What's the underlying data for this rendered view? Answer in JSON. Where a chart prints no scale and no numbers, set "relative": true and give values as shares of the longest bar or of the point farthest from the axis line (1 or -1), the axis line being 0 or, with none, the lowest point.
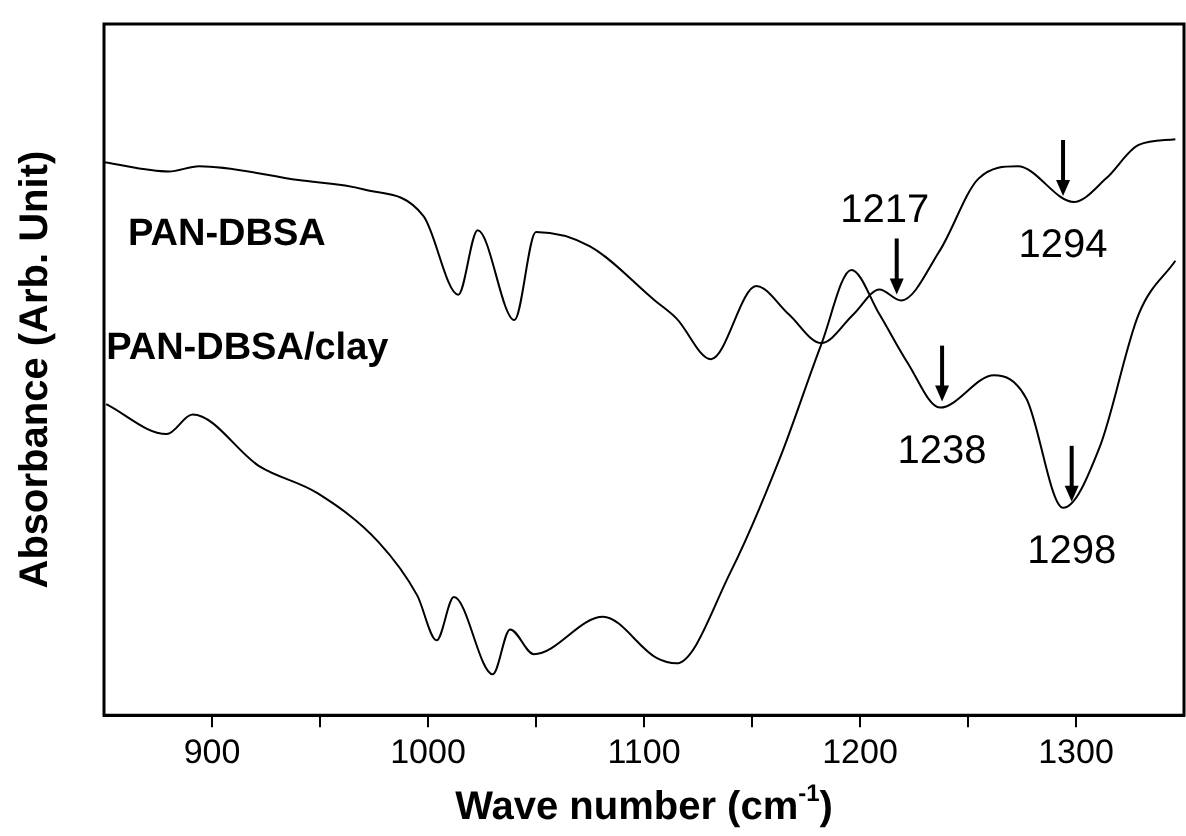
{
  "chart_data": {
    "type": "line",
    "xlabel": "Wave number (cm$^{-1}$)",
    "ylabel": "Absorbance (Arb. Unit)",
    "relative": true,
    "xlim": [
      850,
      1350
    ],
    "xticks": [
      900,
      {
        "value": 950,
        "label": null
      },
      1000,
      {
        "value": 1050,
        "label": null
      },
      1100,
      {
        "value": 1150,
        "label": null
      },
      1200,
      {
        "value": 1250,
        "label": null
      },
      1300
    ],
    "grid": false,
    "legend": false,
    "marker": "none",
    "line_style": "solid",
    "series": [
      {
        "name": "PAN-DBSA",
        "color": "#000000",
        "x": [
          850,
          880,
          894,
          940,
          970,
          998,
          1014,
          1023,
          1040,
          1050,
          1075,
          1105,
          1115,
          1131,
          1152,
          1167,
          1182,
          1197,
          1209,
          1219,
          1237,
          1255,
          1273,
          1299,
          1314,
          1329,
          1346
        ],
        "values": [
          0.96,
          0.944,
          0.953,
          0.929,
          0.913,
          0.866,
          0.73,
          0.842,
          0.686,
          0.839,
          0.814,
          0.72,
          0.689,
          0.618,
          0.745,
          0.696,
          0.646,
          0.696,
          0.739,
          0.72,
          0.807,
          0.932,
          0.953,
          0.891,
          0.932,
          0.99,
          1.0
        ]
      },
      {
        "name": "PAN-DBSA/clay",
        "color": "#000000",
        "x": [
          851,
          879,
          891,
          922,
          949,
          977,
          995,
          1004,
          1012,
          1030,
          1038,
          1049,
          1081,
          1106,
          1115,
          1140,
          1163,
          1182,
          1196,
          1209,
          1222,
          1237,
          1262,
          1277,
          1294,
          1311,
          1329,
          1346
        ],
        "values": [
          0.54,
          0.488,
          0.522,
          0.432,
          0.385,
          0.301,
          0.208,
          0.13,
          0.205,
          0.071,
          0.149,
          0.106,
          0.171,
          0.099,
          0.09,
          0.248,
          0.447,
          0.643,
          0.773,
          0.696,
          0.612,
          0.534,
          0.59,
          0.55,
          0.36,
          0.466,
          0.696,
          0.789
        ]
      }
    ],
    "annotations": [
      {
        "text": "1217",
        "x": 1217,
        "y": 0.72
      },
      {
        "text": "1294",
        "x": 1294,
        "y": 0.891
      },
      {
        "text": "1238",
        "x": 1238,
        "y": 0.534
      },
      {
        "text": "1298",
        "x": 1298,
        "y": 0.36
      }
    ]
  }
}
